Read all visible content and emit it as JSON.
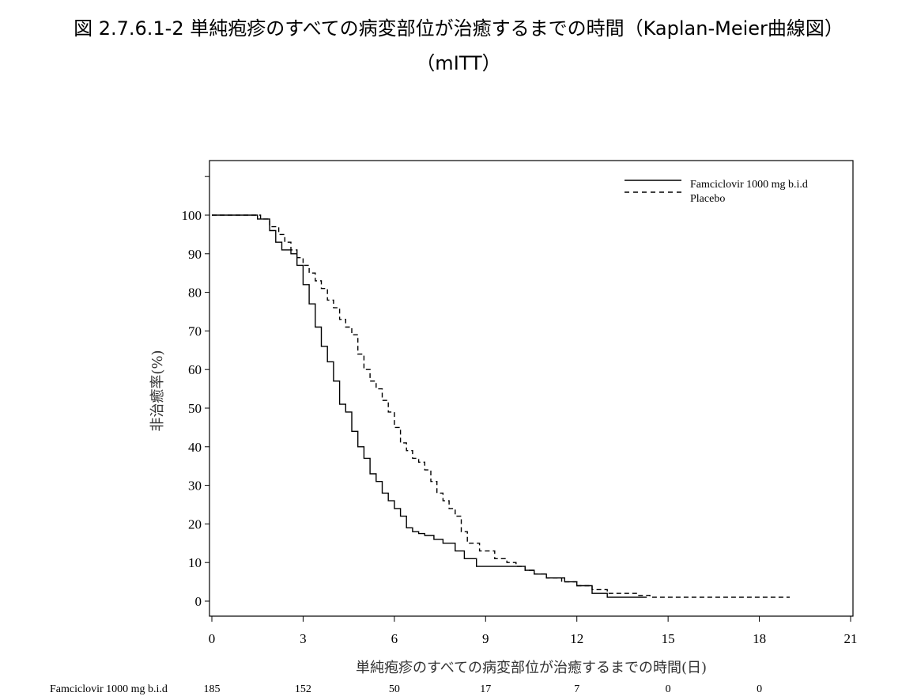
{
  "figure": {
    "title_line_1": "図 2.7.6.1-2 単純疱疹のすべての病変部位が治癒するまでの時間（Kaplan-Meier曲線図）",
    "title_line_2": "（mITT）"
  },
  "chart_data": {
    "type": "line",
    "xlabel": "単純疱疹のすべての病変部位が治癒するまでの時間(日)",
    "ylabel": "非治癒率(%)",
    "xlim": [
      0,
      21
    ],
    "ylim": [
      -4,
      110
    ],
    "xticks": [
      0,
      3,
      6,
      9,
      12,
      15,
      18,
      21
    ],
    "yticks": [
      0,
      10,
      20,
      30,
      40,
      50,
      60,
      70,
      80,
      90,
      100
    ],
    "grid": false,
    "legend_position": "top-right",
    "series": [
      {
        "name": "Famciclovir 1000 mg b.i.d",
        "line_style": "solid",
        "x": [
          0,
          1.2,
          1.5,
          1.9,
          2.1,
          2.3,
          2.6,
          2.8,
          3.0,
          3.2,
          3.4,
          3.6,
          3.8,
          4.0,
          4.2,
          4.4,
          4.6,
          4.8,
          5.0,
          5.2,
          5.4,
          5.6,
          5.8,
          6.0,
          6.2,
          6.4,
          6.6,
          6.8,
          7.0,
          7.3,
          7.6,
          8.0,
          8.3,
          8.7,
          9.0,
          9.5,
          10.0,
          10.3,
          10.6,
          11.0,
          11.6,
          12.0,
          12.5,
          13.0,
          13.3,
          14.3
        ],
        "y": [
          100,
          100,
          99,
          96,
          93,
          91,
          90,
          87,
          82,
          77,
          71,
          66,
          62,
          57,
          51,
          49,
          44,
          40,
          37,
          33,
          31,
          28,
          26,
          24,
          22,
          19,
          18,
          17.5,
          17,
          16,
          15,
          13,
          11,
          9,
          9,
          9,
          9,
          8,
          7,
          6,
          5,
          4,
          2,
          1,
          1,
          1
        ]
      },
      {
        "name": "Placebo",
        "line_style": "dashed",
        "x": [
          0,
          1.2,
          1.6,
          1.9,
          2.2,
          2.4,
          2.6,
          2.8,
          3.0,
          3.2,
          3.4,
          3.6,
          3.8,
          4.0,
          4.2,
          4.4,
          4.6,
          4.8,
          5.0,
          5.2,
          5.4,
          5.6,
          5.8,
          6.0,
          6.2,
          6.4,
          6.6,
          6.8,
          7.0,
          7.2,
          7.4,
          7.6,
          7.8,
          8.0,
          8.2,
          8.4,
          8.8,
          9.3,
          9.7,
          10.0,
          10.3,
          10.6,
          11.0,
          11.5,
          12.0,
          12.5,
          13.0,
          13.5,
          14.0,
          14.4,
          19.0
        ],
        "y": [
          100,
          100,
          99,
          97,
          95,
          93,
          91,
          89,
          87,
          85,
          83,
          81,
          78,
          76,
          73,
          71,
          69,
          64,
          60,
          57,
          55,
          52,
          49,
          45,
          41,
          39,
          37,
          36,
          34,
          31,
          28,
          26,
          24,
          22,
          18,
          15,
          13,
          11,
          10,
          9,
          8,
          7,
          6,
          5,
          4,
          3,
          2,
          2,
          1.5,
          1,
          1
        ]
      }
    ],
    "risk_table": {
      "label": "Famciclovir 1000 mg b.i.d",
      "values": [
        "185",
        "152",
        "50",
        "17",
        "7",
        "0",
        "0"
      ],
      "at_x": [
        0,
        3,
        6,
        9,
        12,
        15,
        18
      ]
    }
  }
}
